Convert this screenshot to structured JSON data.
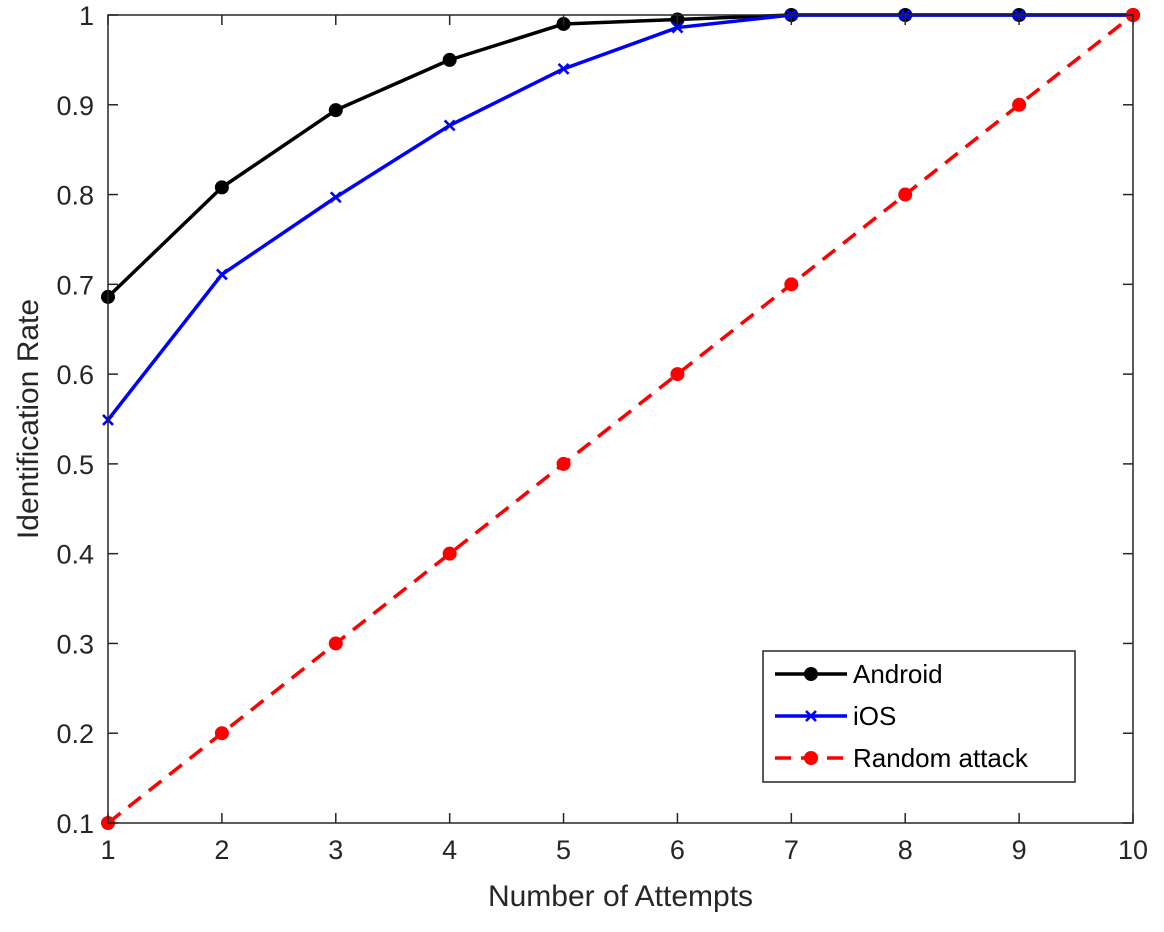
{
  "chart_data": {
    "type": "line",
    "title": "",
    "xlabel": "Number of Attempts",
    "ylabel": "Identification Rate",
    "xlim": [
      1,
      10
    ],
    "ylim": [
      0.1,
      1
    ],
    "xticks": [
      "1",
      "2",
      "3",
      "4",
      "5",
      "6",
      "7",
      "8",
      "9",
      "10"
    ],
    "yticks": [
      "0.1",
      "0.2",
      "0.3",
      "0.4",
      "0.5",
      "0.6",
      "0.7",
      "0.8",
      "0.9",
      "1"
    ],
    "grid": false,
    "legend_position": "bottom-right",
    "x": [
      1,
      2,
      3,
      4,
      5,
      6,
      7,
      8,
      9,
      10
    ],
    "series": [
      {
        "name": "Android",
        "color": "#000000",
        "marker": "circle",
        "dash": "solid",
        "values": [
          0.686,
          0.808,
          0.894,
          0.95,
          0.99,
          0.995,
          1.0,
          1.0,
          1.0,
          1.0
        ]
      },
      {
        "name": "iOS",
        "color": "#0000ff",
        "marker": "x",
        "dash": "solid",
        "values": [
          0.549,
          0.711,
          0.797,
          0.877,
          0.94,
          0.986,
          1.0,
          1.0,
          1.0,
          1.0
        ]
      },
      {
        "name": "Random attack",
        "color": "#ff0000",
        "marker": "circle",
        "dash": "dashed",
        "values": [
          0.1,
          0.2,
          0.3,
          0.4,
          0.5,
          0.6,
          0.7,
          0.8,
          0.9,
          1.0
        ]
      }
    ]
  }
}
